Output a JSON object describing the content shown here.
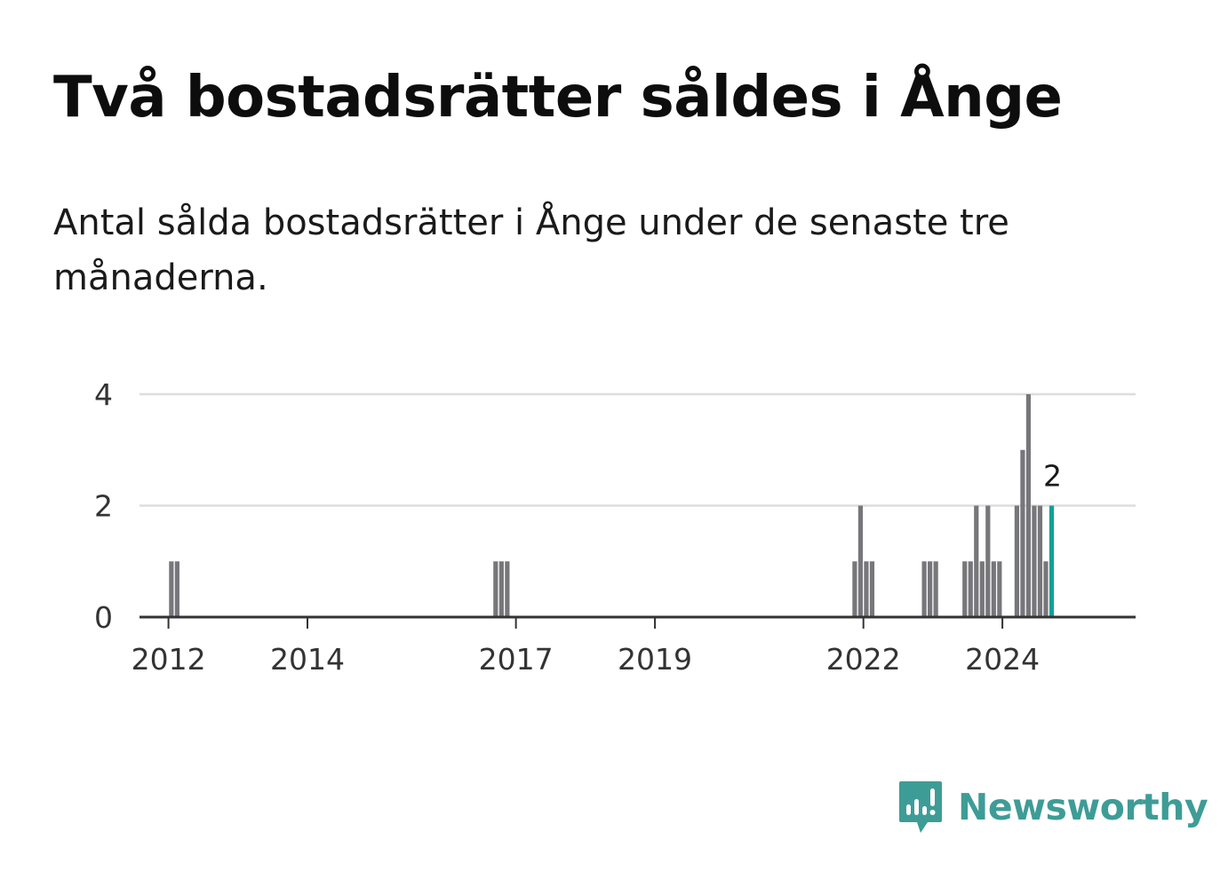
{
  "header": {
    "title": "Två bostadsrätter såldes i Ånge",
    "subtitle": "Antal sålda bostadsrätter i Ånge under de senaste tre månaderna."
  },
  "brand": {
    "name": "Newsworthy",
    "color": "#3e9c96"
  },
  "colors": {
    "bar": "#77767b",
    "highlight": "#12a098",
    "grid": "#dddddd",
    "axis": "#333333"
  },
  "chart_data": {
    "type": "bar",
    "title": "Två bostadsrätter såldes i Ånge",
    "subtitle": "Antal sålda bostadsrätter i Ånge under de senaste tre månaderna.",
    "xlabel": "",
    "ylabel": "",
    "ylim": [
      0,
      4
    ],
    "yticks": [
      0,
      2,
      4
    ],
    "xticks": [
      "2012",
      "2014",
      "2017",
      "2019",
      "2022",
      "2024"
    ],
    "xlim": [
      "2011-08",
      "2025-12"
    ],
    "grid": true,
    "legend": "none",
    "series": [
      {
        "values": [
          {
            "x": "2012-01",
            "y": 1
          },
          {
            "x": "2012-02",
            "y": 1
          },
          {
            "x": "2016-09",
            "y": 1
          },
          {
            "x": "2016-10",
            "y": 1
          },
          {
            "x": "2016-11",
            "y": 1
          },
          {
            "x": "2021-11",
            "y": 1
          },
          {
            "x": "2021-12",
            "y": 2
          },
          {
            "x": "2022-01",
            "y": 1
          },
          {
            "x": "2022-02",
            "y": 1
          },
          {
            "x": "2022-11",
            "y": 1
          },
          {
            "x": "2022-12",
            "y": 1
          },
          {
            "x": "2023-01",
            "y": 1
          },
          {
            "x": "2023-06",
            "y": 1
          },
          {
            "x": "2023-07",
            "y": 1
          },
          {
            "x": "2023-08",
            "y": 2
          },
          {
            "x": "2023-09",
            "y": 1
          },
          {
            "x": "2023-10",
            "y": 2
          },
          {
            "x": "2023-11",
            "y": 1
          },
          {
            "x": "2023-12",
            "y": 1
          },
          {
            "x": "2024-03",
            "y": 2
          },
          {
            "x": "2024-04",
            "y": 3
          },
          {
            "x": "2024-05",
            "y": 4
          },
          {
            "x": "2024-06",
            "y": 2
          },
          {
            "x": "2024-07",
            "y": 2
          },
          {
            "x": "2024-08",
            "y": 1
          },
          {
            "x": "2024-09",
            "y": 2
          }
        ]
      }
    ],
    "highlight": {
      "x": "2024-09",
      "label": "2"
    }
  }
}
